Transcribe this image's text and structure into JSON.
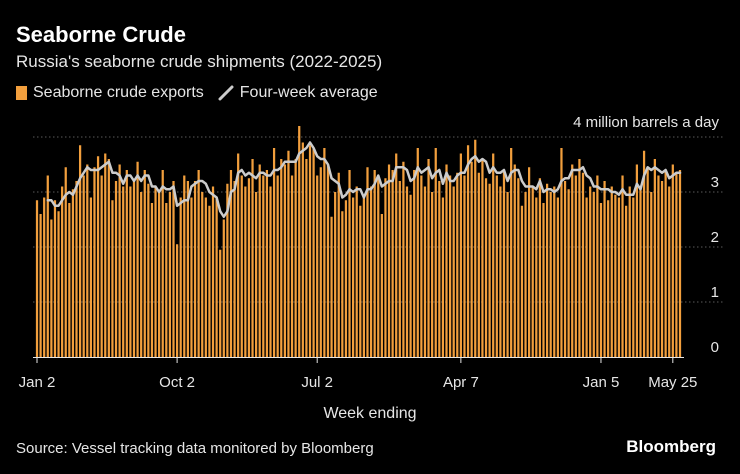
{
  "chart_data": {
    "type": "bar",
    "title": "Seaborne Crude",
    "subtitle": "Russia's seaborne crude shipments (2022-2025)",
    "xlabel": "Week ending",
    "ylabel": "",
    "unit_label": "4 million barrels a day",
    "ylim": [
      0,
      4
    ],
    "yticks": [
      "0",
      "1",
      "2",
      "3"
    ],
    "xticks": [
      {
        "label": "Jan 2",
        "week_index": 0
      },
      {
        "label": "Oct 2",
        "week_index": 39
      },
      {
        "label": "Jul 2",
        "week_index": 78
      },
      {
        "label": "Apr 7",
        "week_index": 118
      },
      {
        "label": "Jan 5",
        "week_index": 157
      },
      {
        "label": "May 25",
        "week_index": 177
      }
    ],
    "grid": true,
    "legend_position": "top-left",
    "colors": {
      "bars": "#f29f3d",
      "line": "#cccccc"
    },
    "series": [
      {
        "name": "Seaborne crude exports",
        "type": "bar",
        "values": [
          2.85,
          2.6,
          2.9,
          3.3,
          2.5,
          2.85,
          2.65,
          3.1,
          3.45,
          2.8,
          3.05,
          3.2,
          3.85,
          3.3,
          3.5,
          2.9,
          3.45,
          3.65,
          3.3,
          3.7,
          3.6,
          2.85,
          3.2,
          3.5,
          3.1,
          3.4,
          3.1,
          3.2,
          3.55,
          3.0,
          3.4,
          3.15,
          2.8,
          3.1,
          3.0,
          3.4,
          2.8,
          3.0,
          3.2,
          2.05,
          2.9,
          3.3,
          3.2,
          2.9,
          3.2,
          3.4,
          3.0,
          2.9,
          2.75,
          3.1,
          2.9,
          1.95,
          2.5,
          3.15,
          3.4,
          3.2,
          3.7,
          3.3,
          3.1,
          3.25,
          3.6,
          3.0,
          3.5,
          3.3,
          3.4,
          3.1,
          3.8,
          3.3,
          3.6,
          3.5,
          3.75,
          3.3,
          3.6,
          4.2,
          3.9,
          3.6,
          3.85,
          3.8,
          3.3,
          3.45,
          3.8,
          3.5,
          2.55,
          3.0,
          3.35,
          2.65,
          2.85,
          3.4,
          2.9,
          3.1,
          2.75,
          2.9,
          3.45,
          3.1,
          3.4,
          3.3,
          2.6,
          3.25,
          3.5,
          3.4,
          3.7,
          3.2,
          3.55,
          3.1,
          2.95,
          3.4,
          3.8,
          3.3,
          3.1,
          3.6,
          3.0,
          3.8,
          3.2,
          2.9,
          3.5,
          3.3,
          3.1,
          3.35,
          3.7,
          3.3,
          3.85,
          3.55,
          3.95,
          3.35,
          3.6,
          3.25,
          3.15,
          3.7,
          3.3,
          3.1,
          3.4,
          3.0,
          3.8,
          3.5,
          3.25,
          2.75,
          3.0,
          3.45,
          3.1,
          2.9,
          3.25,
          2.8,
          3.15,
          3.0,
          3.1,
          2.9,
          3.8,
          3.2,
          3.05,
          3.5,
          3.3,
          3.6,
          3.35,
          2.9,
          3.1,
          3.0,
          3.3,
          2.8,
          3.2,
          2.85,
          3.1,
          2.95,
          2.9,
          3.3,
          2.75,
          3.1,
          2.9,
          3.5,
          3.1,
          3.75,
          3.45,
          3.0,
          3.6,
          3.3,
          3.2,
          3.4,
          3.1,
          3.5,
          3.35,
          3.4
        ]
      },
      {
        "name": "Four-week average",
        "type": "line",
        "values": [
          null,
          null,
          null,
          2.85,
          2.85,
          2.75,
          2.75,
          2.85,
          2.95,
          3.0,
          2.95,
          3.1,
          3.25,
          3.35,
          3.45,
          3.4,
          3.4,
          3.4,
          3.45,
          3.5,
          3.55,
          3.35,
          3.35,
          3.3,
          3.15,
          3.3,
          3.3,
          3.2,
          3.3,
          3.2,
          3.3,
          3.3,
          3.1,
          3.1,
          3.0,
          3.1,
          3.05,
          3.05,
          3.1,
          2.75,
          2.8,
          2.85,
          2.85,
          3.1,
          3.15,
          3.2,
          3.2,
          3.15,
          3.0,
          2.95,
          2.9,
          2.65,
          2.55,
          2.65,
          3.0,
          3.05,
          3.35,
          3.4,
          3.3,
          3.35,
          3.3,
          3.25,
          3.35,
          3.35,
          3.3,
          3.3,
          3.4,
          3.4,
          3.45,
          3.55,
          3.55,
          3.55,
          3.55,
          3.7,
          3.75,
          3.8,
          3.9,
          3.8,
          3.65,
          3.6,
          3.6,
          3.5,
          3.25,
          3.2,
          3.15,
          2.9,
          2.95,
          3.05,
          3.0,
          3.05,
          3.05,
          2.9,
          3.05,
          3.05,
          3.15,
          3.3,
          3.1,
          3.15,
          3.2,
          3.2,
          3.45,
          3.45,
          3.45,
          3.4,
          3.2,
          3.25,
          3.45,
          3.35,
          3.4,
          3.45,
          3.25,
          3.35,
          3.4,
          3.15,
          3.35,
          3.2,
          3.2,
          3.3,
          3.35,
          3.35,
          3.5,
          3.6,
          3.65,
          3.55,
          3.6,
          3.55,
          3.35,
          3.45,
          3.35,
          3.35,
          3.4,
          3.2,
          3.35,
          3.4,
          3.4,
          3.2,
          3.1,
          3.1,
          3.1,
          3.05,
          3.2,
          3.0,
          3.05,
          3.05,
          3.0,
          3.05,
          3.2,
          3.25,
          3.25,
          3.4,
          3.4,
          3.4,
          3.45,
          3.3,
          3.25,
          3.1,
          3.1,
          3.05,
          3.05,
          3.05,
          3.0,
          3.0,
          2.95,
          3.05,
          2.95,
          2.95,
          2.95,
          3.15,
          3.05,
          3.3,
          3.45,
          3.4,
          3.45,
          3.4,
          3.35,
          3.4,
          3.25,
          3.3,
          3.35,
          3.35
        ]
      }
    ]
  },
  "source": "Source: Vessel tracking data monitored by Bloomberg",
  "brand": "Bloomberg"
}
